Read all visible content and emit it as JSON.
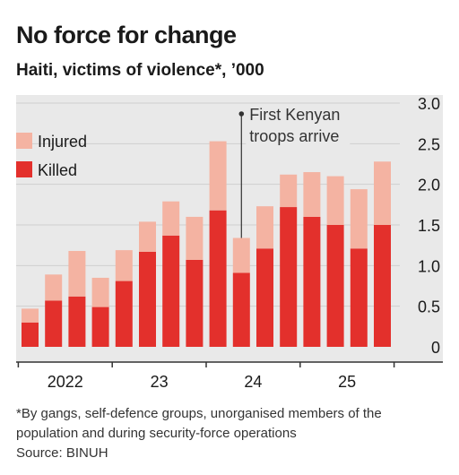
{
  "header": {
    "title": "No force for change",
    "subtitle": "Haiti, victims of violence*, ’000"
  },
  "footer": {
    "note": "*By gangs, self-defence groups, unorganised members of the population and during security-force operations",
    "source": "Source: BINUH"
  },
  "colors": {
    "killed": "#e3302c",
    "injured": "#f4b3a2",
    "grid": "#d9d9d9",
    "background": "#e9e9e9"
  },
  "chart_data": {
    "type": "bar",
    "stacked": true,
    "categories": [
      "Q1 2022",
      "Q2 2022",
      "Q3 2022",
      "Q4 2022",
      "Q1 2023",
      "Q2 2023",
      "Q3 2023",
      "Q4 2023",
      "Q1 2024",
      "Q2 2024",
      "Q3 2024",
      "Q4 2024",
      "Q1 2025",
      "Q2 2025",
      "Q3 2025",
      "Q4 2025"
    ],
    "x_tick_labels": [
      "2022",
      "23",
      "24",
      "25"
    ],
    "series": [
      {
        "name": "Killed",
        "color": "#e3302c",
        "values": [
          0.3,
          0.57,
          0.62,
          0.49,
          0.81,
          1.17,
          1.37,
          1.07,
          1.68,
          0.91,
          1.21,
          1.72,
          1.6,
          1.5,
          1.21,
          1.5
        ]
      },
      {
        "name": "Injured",
        "color": "#f4b3a2",
        "values": [
          0.17,
          0.32,
          0.56,
          0.36,
          0.38,
          0.37,
          0.42,
          0.53,
          0.85,
          0.43,
          0.52,
          0.4,
          0.55,
          0.6,
          0.73,
          0.78
        ]
      }
    ],
    "totals": [
      0.47,
      0.89,
      1.18,
      0.85,
      1.19,
      1.54,
      1.79,
      1.6,
      2.53,
      1.34,
      1.73,
      2.12,
      2.15,
      2.1,
      1.94,
      2.28
    ],
    "y_ticks": [
      "3.0",
      "2.5",
      "2.0",
      "1.5",
      "1.0",
      "0.5",
      "0"
    ],
    "ylim": [
      0,
      3.0
    ],
    "annotation": {
      "line1": "First Kenyan",
      "line2": "troops arrive",
      "category": "Q2 2024"
    },
    "legend": {
      "position": "top-left",
      "items": [
        "Injured",
        "Killed"
      ]
    },
    "grid": true
  }
}
